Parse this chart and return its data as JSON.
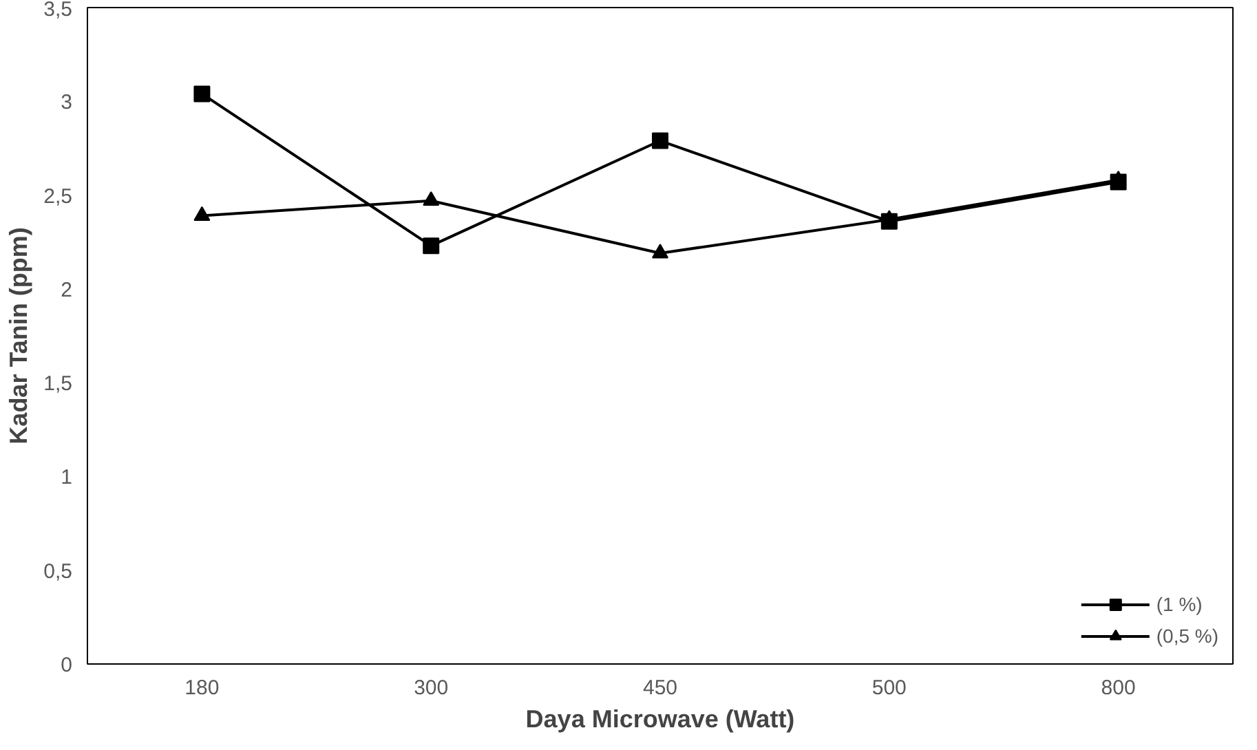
{
  "chart_data": {
    "type": "line",
    "xlabel": "Daya Microwave (Watt)",
    "ylabel": "Kadar Tanin (ppm)",
    "categories": [
      "180",
      "300",
      "450",
      "500",
      "800"
    ],
    "series": [
      {
        "name": "(1 %)",
        "color": "#000000",
        "marker": "square",
        "values": [
          3.04,
          2.23,
          2.79,
          2.36,
          2.57
        ]
      },
      {
        "name": "(0,5 %)",
        "color": "#000000",
        "marker": "triangle",
        "values": [
          2.39,
          2.47,
          2.19,
          2.37,
          2.58
        ]
      }
    ],
    "ylim": [
      0,
      3.5
    ],
    "yticks": [
      {
        "value": 0,
        "label": "0"
      },
      {
        "value": 0.5,
        "label": "0,5"
      },
      {
        "value": 1,
        "label": "1"
      },
      {
        "value": 1.5,
        "label": "1,5"
      },
      {
        "value": 2,
        "label": "2"
      },
      {
        "value": 2.5,
        "label": "2,5"
      },
      {
        "value": 3,
        "label": "3"
      },
      {
        "value": 3.5,
        "label": "3,5"
      }
    ],
    "grid": false,
    "legend": "bottom right",
    "line_style": "solid"
  }
}
